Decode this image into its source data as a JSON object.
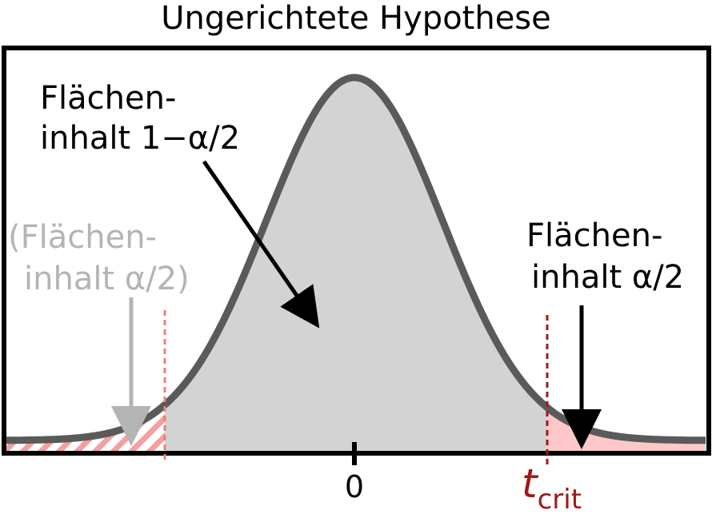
{
  "title": "Ungerichtete Hypothese",
  "labels": {
    "center_area_line1": "Flächen-",
    "center_area_line2": "inhalt 1−α/2",
    "left_area_line1": "(Flächen-",
    "left_area_line2": "inhalt α/2)",
    "right_area_line1": "Flächen-",
    "right_area_line2": "inhalt α/2",
    "zero_tick": "0",
    "tcrit_main": "t",
    "tcrit_sub": "crit"
  },
  "colors": {
    "curve": "#5a5a5a",
    "fill_gray": "#d3d3d3",
    "tail_fill": "#ffc8c8",
    "dashed_left": "#f07c7c",
    "dashed_right": "#a01818",
    "tcrit_text": "#a01818",
    "ghost_text": "#b4b4b4",
    "arrow_dark": "#000000"
  }
}
